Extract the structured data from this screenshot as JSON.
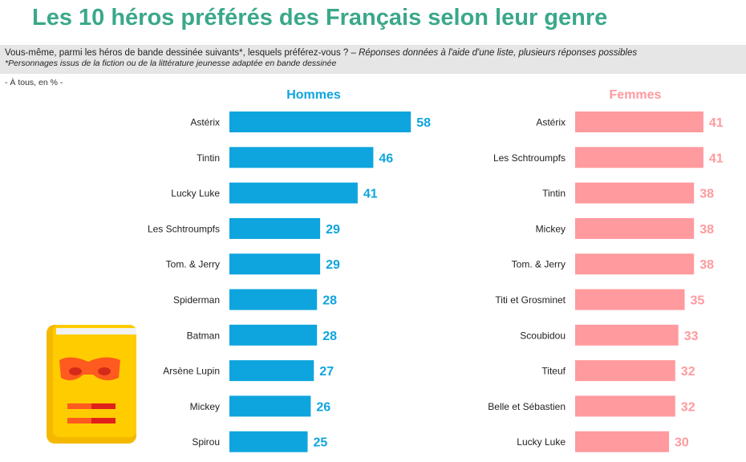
{
  "title": "Les 10 héros préférés des Français selon leur genre",
  "question": {
    "main": "Vous-même, parmi les héros de bande dessinée suivants*, lesquels préférez-vous ? – ",
    "instruction": "Réponses données à l'aide d'une liste, plusieurs réponses possibles",
    "footnote": "*Personnages issus de la fiction ou de la littérature jeunesse adaptée en bande dessinée"
  },
  "base": "- À tous, en % -",
  "colors": {
    "title": "#3aa88a",
    "hommes": "#0ea5de",
    "femmes": "#ff9a9e"
  },
  "illustration": {
    "icon": "comic-book-mask-icon"
  },
  "chart_data": [
    {
      "type": "bar",
      "title": "Hommes",
      "orientation": "horizontal",
      "unit": "%",
      "categories": [
        "Astérix",
        "Tintin",
        "Lucky Luke",
        "Les Schtroumpfs",
        "Tom. & Jerry",
        "Spiderman",
        "Batman",
        "Arsène Lupin",
        "Mickey",
        "Spirou"
      ],
      "values": [
        58,
        46,
        41,
        29,
        29,
        28,
        28,
        27,
        26,
        25
      ],
      "color": "#0ea5de"
    },
    {
      "type": "bar",
      "title": "Femmes",
      "orientation": "horizontal",
      "unit": "%",
      "categories": [
        "Astérix",
        "Les Schtroumpfs",
        "Tintin",
        "Mickey",
        "Tom. & Jerry",
        "Titi et Grosminet",
        "Scoubidou",
        "Titeuf",
        "Belle et Sébastien",
        "Lucky Luke"
      ],
      "values": [
        41,
        41,
        38,
        38,
        38,
        35,
        33,
        32,
        32,
        30
      ],
      "color": "#ff9a9e"
    }
  ]
}
